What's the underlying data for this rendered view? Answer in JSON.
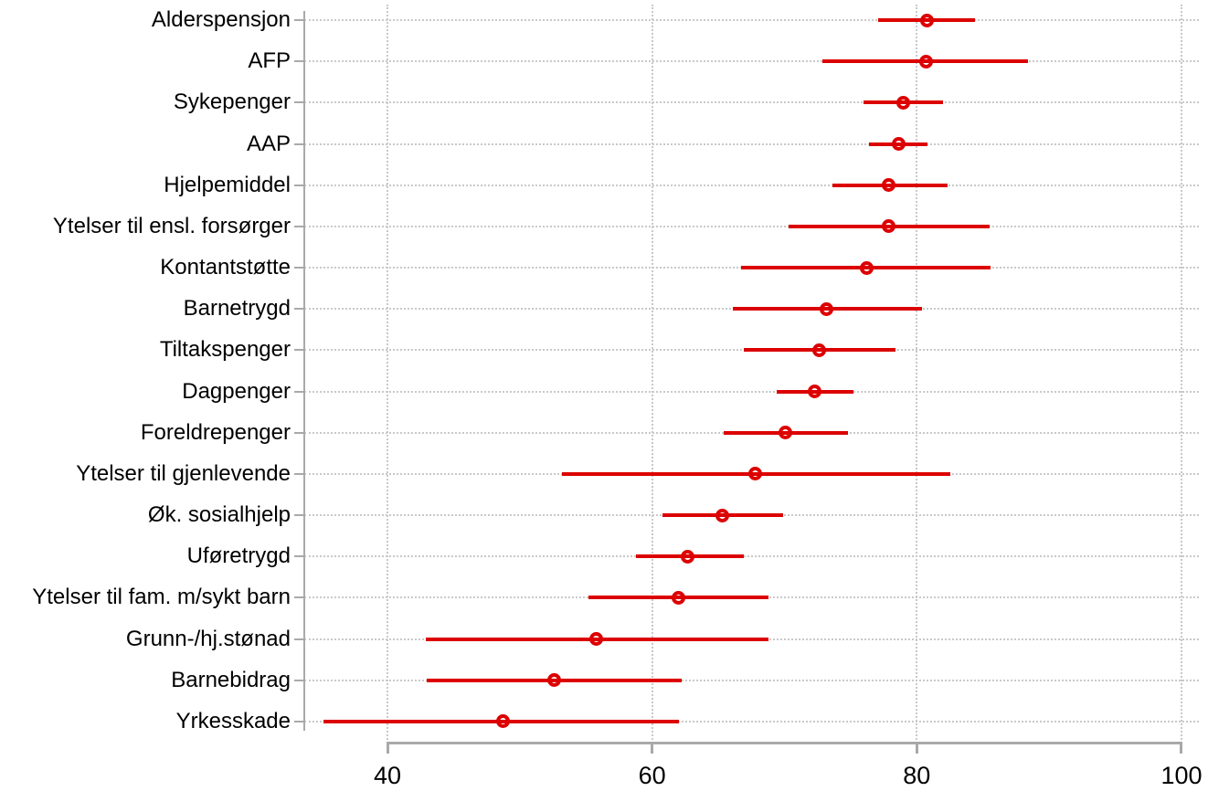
{
  "chart_data": {
    "type": "scatter",
    "subtype": "horizontal_dot_plot_with_confidence_intervals",
    "title": "",
    "xlabel": "",
    "ylabel": "",
    "legend": "none",
    "grid": "dotted, both axes",
    "marker": "hollow-circle",
    "categories": [
      "Alderspensjon",
      "AFP",
      "Sykepenger",
      "AAP",
      "Hjelpemiddel",
      "Ytelser til ensl. forsørger",
      "Kontantstøtte",
      "Barnetrygd",
      "Tiltakspenger",
      "Dagpenger",
      "Foreldrepenger",
      "Ytelser til gjenlevende",
      "Øk. sosialhjelp",
      "Uføretrygd",
      "Ytelser til fam. m/sykt barn",
      "Grunn-/hj.stønad",
      "Barnebidrag",
      "Yrkesskade"
    ],
    "series": [
      {
        "name": "Point estimate",
        "values": [
          80.8,
          80.7,
          79.0,
          78.6,
          77.9,
          77.9,
          76.2,
          73.2,
          72.6,
          72.3,
          70.1,
          67.8,
          65.3,
          62.7,
          62.0,
          55.8,
          52.6,
          48.7
        ]
      },
      {
        "name": "CI lower",
        "values": [
          77.1,
          72.9,
          76.0,
          76.4,
          73.6,
          70.3,
          66.7,
          66.1,
          66.9,
          69.4,
          65.4,
          53.2,
          60.8,
          58.8,
          55.2,
          42.9,
          43.0,
          35.2
        ]
      },
      {
        "name": "CI upper",
        "values": [
          84.4,
          88.4,
          82.0,
          80.8,
          82.3,
          85.5,
          85.6,
          80.4,
          78.4,
          75.2,
          74.8,
          82.5,
          69.9,
          66.9,
          68.8,
          68.8,
          62.2,
          62.0
        ]
      }
    ],
    "x_ticks": [
      40,
      60,
      80,
      100
    ],
    "x_tick_labels": [
      "40",
      "60",
      "80",
      "100"
    ],
    "xlim": [
      33.5,
      101.5
    ],
    "colors": {
      "point": "#dc0000",
      "ci": "#dc0000",
      "axis": "#a9a9a9",
      "gridline": "#c9c9c9",
      "text": "#000000",
      "background": "#ffffff"
    }
  }
}
